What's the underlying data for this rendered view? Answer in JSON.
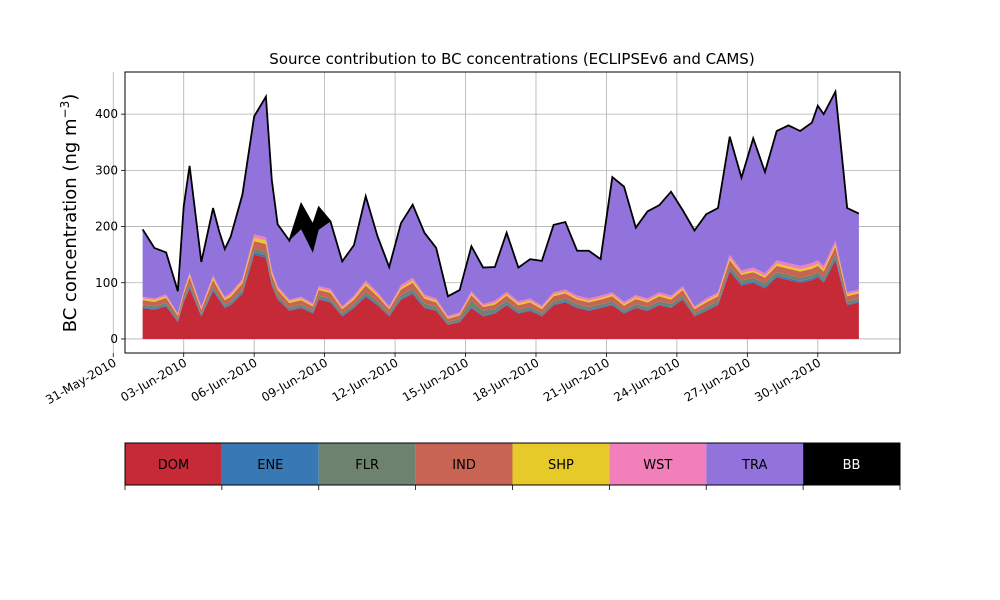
{
  "chart_data": {
    "type": "area",
    "title": "Source contribution to BC concentrations (ECLIPSEv6 and CAMS)",
    "ylabel": "BC concentration (ng m",
    "ylabel_sup": "−3",
    "ylabel_close": ")",
    "xlabel": "",
    "ylim": [
      -25,
      475
    ],
    "xlim": [
      "2010-05-31T12:00",
      "2010-07-03T12:00"
    ],
    "grid": true,
    "y_ticks": [
      0,
      100,
      200,
      300,
      400
    ],
    "x_ticks": [
      {
        "date": "2010-05-31",
        "label": "31-May-2010"
      },
      {
        "date": "2010-06-03",
        "label": "03-Jun-2010"
      },
      {
        "date": "2010-06-06",
        "label": "06-Jun-2010"
      },
      {
        "date": "2010-06-09",
        "label": "09-Jun-2010"
      },
      {
        "date": "2010-06-12",
        "label": "12-Jun-2010"
      },
      {
        "date": "2010-06-15",
        "label": "15-Jun-2010"
      },
      {
        "date": "2010-06-18",
        "label": "18-Jun-2010"
      },
      {
        "date": "2010-06-21",
        "label": "21-Jun-2010"
      },
      {
        "date": "2010-06-24",
        "label": "24-Jun-2010"
      },
      {
        "date": "2010-06-27",
        "label": "27-Jun-2010"
      },
      {
        "date": "2010-06-30",
        "label": "30-Jun-2010"
      }
    ],
    "total_line_color": "#000000",
    "x": [
      "2010-06-01T06:00",
      "2010-06-01T18:00",
      "2010-06-02T06:00",
      "2010-06-02T18:00",
      "2010-06-03T00:00",
      "2010-06-03T06:00",
      "2010-06-03T18:00",
      "2010-06-04T06:00",
      "2010-06-04T12:00",
      "2010-06-04T18:00",
      "2010-06-05T00:00",
      "2010-06-05T12:00",
      "2010-06-06T00:00",
      "2010-06-06T12:00",
      "2010-06-06T18:00",
      "2010-06-07T00:00",
      "2010-06-07T12:00",
      "2010-06-08T00:00",
      "2010-06-08T12:00",
      "2010-06-08T18:00",
      "2010-06-09T06:00",
      "2010-06-09T18:00",
      "2010-06-10T06:00",
      "2010-06-10T18:00",
      "2010-06-11T06:00",
      "2010-06-11T18:00",
      "2010-06-12T06:00",
      "2010-06-12T18:00",
      "2010-06-13T06:00",
      "2010-06-13T18:00",
      "2010-06-14T06:00",
      "2010-06-14T18:00",
      "2010-06-15T06:00",
      "2010-06-15T18:00",
      "2010-06-16T06:00",
      "2010-06-16T18:00",
      "2010-06-17T06:00",
      "2010-06-17T18:00",
      "2010-06-18T06:00",
      "2010-06-18T18:00",
      "2010-06-19T06:00",
      "2010-06-19T18:00",
      "2010-06-20T06:00",
      "2010-06-20T18:00",
      "2010-06-21T06:00",
      "2010-06-21T18:00",
      "2010-06-22T06:00",
      "2010-06-22T18:00",
      "2010-06-23T06:00",
      "2010-06-23T18:00",
      "2010-06-24T06:00",
      "2010-06-24T18:00",
      "2010-06-25T06:00",
      "2010-06-25T18:00",
      "2010-06-26T06:00",
      "2010-06-26T18:00",
      "2010-06-27T06:00",
      "2010-06-27T18:00",
      "2010-06-28T06:00",
      "2010-06-28T18:00",
      "2010-06-29T06:00",
      "2010-06-29T18:00",
      "2010-06-30T00:00",
      "2010-06-30T06:00",
      "2010-06-30T18:00",
      "2010-07-01T06:00",
      "2010-07-01T18:00"
    ],
    "series": [
      {
        "name": "DOM",
        "color": "#c62a37",
        "values": [
          55,
          52,
          58,
          30,
          65,
          90,
          40,
          85,
          70,
          55,
          60,
          80,
          150,
          145,
          95,
          70,
          50,
          55,
          45,
          70,
          65,
          40,
          55,
          75,
          60,
          40,
          70,
          80,
          55,
          50,
          25,
          30,
          55,
          40,
          45,
          60,
          45,
          50,
          40,
          60,
          65,
          55,
          50,
          55,
          60,
          45,
          55,
          50,
          60,
          55,
          70,
          40,
          50,
          60,
          120,
          95,
          100,
          90,
          110,
          105,
          100,
          105,
          110,
          100,
          140,
          60,
          65
        ]
      },
      {
        "name": "ENE",
        "color": "#3778b5",
        "values": [
          2,
          2,
          2,
          2,
          2,
          3,
          2,
          3,
          2,
          2,
          2,
          3,
          4,
          4,
          3,
          2,
          2,
          2,
          2,
          2,
          2,
          2,
          2,
          3,
          2,
          2,
          2,
          3,
          2,
          2,
          1,
          1,
          2,
          2,
          2,
          2,
          2,
          2,
          2,
          2,
          2,
          2,
          2,
          2,
          2,
          2,
          2,
          2,
          2,
          2,
          2,
          2,
          2,
          2,
          3,
          3,
          3,
          3,
          3,
          3,
          3,
          3,
          3,
          3,
          4,
          2,
          2
        ]
      },
      {
        "name": "FLR",
        "color": "#6e8270",
        "values": [
          4,
          4,
          4,
          3,
          4,
          5,
          3,
          5,
          4,
          4,
          4,
          5,
          6,
          6,
          5,
          5,
          4,
          4,
          4,
          5,
          5,
          4,
          4,
          6,
          5,
          4,
          6,
          6,
          6,
          5,
          4,
          5,
          12,
          8,
          6,
          6,
          5,
          5,
          4,
          5,
          5,
          5,
          5,
          5,
          5,
          4,
          5,
          5,
          5,
          5,
          5,
          4,
          5,
          5,
          6,
          6,
          6,
          6,
          6,
          6,
          6,
          6,
          6,
          6,
          7,
          5,
          5
        ]
      },
      {
        "name": "IND",
        "color": "#c86454",
        "values": [
          8,
          8,
          9,
          6,
          9,
          12,
          7,
          12,
          10,
          8,
          9,
          11,
          14,
          14,
          11,
          10,
          8,
          8,
          7,
          10,
          10,
          7,
          9,
          11,
          9,
          7,
          10,
          11,
          9,
          8,
          6,
          6,
          9,
          7,
          8,
          9,
          8,
          8,
          7,
          9,
          9,
          8,
          8,
          8,
          9,
          8,
          9,
          8,
          9,
          8,
          10,
          7,
          8,
          9,
          11,
          10,
          10,
          10,
          11,
          11,
          11,
          11,
          11,
          11,
          13,
          9,
          9
        ]
      },
      {
        "name": "SHP",
        "color": "#e6ca2a",
        "values": [
          3,
          3,
          3,
          2,
          3,
          4,
          2,
          4,
          3,
          3,
          3,
          4,
          6,
          6,
          4,
          3,
          3,
          3,
          2,
          3,
          3,
          2,
          3,
          4,
          3,
          2,
          3,
          4,
          3,
          3,
          2,
          2,
          3,
          2,
          3,
          3,
          3,
          3,
          3,
          3,
          3,
          3,
          3,
          3,
          3,
          3,
          3,
          3,
          3,
          3,
          3,
          2,
          3,
          3,
          4,
          3,
          3,
          3,
          4,
          4,
          4,
          4,
          4,
          4,
          4,
          3,
          3
        ]
      },
      {
        "name": "WST",
        "color": "#f07fba",
        "values": [
          3,
          3,
          3,
          2,
          3,
          4,
          3,
          4,
          4,
          3,
          4,
          4,
          6,
          6,
          5,
          4,
          3,
          3,
          3,
          4,
          4,
          3,
          4,
          5,
          4,
          3,
          5,
          5,
          4,
          4,
          3,
          3,
          4,
          3,
          4,
          4,
          4,
          4,
          3,
          4,
          4,
          4,
          4,
          4,
          4,
          4,
          4,
          4,
          4,
          4,
          4,
          3,
          4,
          4,
          6,
          5,
          5,
          5,
          6,
          6,
          6,
          6,
          6,
          6,
          7,
          4,
          4
        ]
      },
      {
        "name": "TRA",
        "color": "#9273dc",
        "values": [
          120,
          90,
          75,
          40,
          150,
          190,
          80,
          120,
          100,
          85,
          100,
          150,
          210,
          250,
          160,
          110,
          105,
          120,
          90,
          100,
          120,
          80,
          90,
          150,
          100,
          70,
          110,
          130,
          110,
          90,
          35,
          40,
          80,
          65,
          60,
          105,
          60,
          70,
          80,
          120,
          120,
          80,
          85,
          65,
          205,
          205,
          120,
          155,
          155,
          185,
          135,
          135,
          150,
          150,
          210,
          165,
          230,
          180,
          230,
          245,
          240,
          250,
          275,
          270,
          265,
          150,
          135
        ]
      },
      {
        "name": "BB",
        "color": "#000000",
        "values": [
          0,
          0,
          0,
          0,
          0,
          0,
          0,
          0,
          0,
          0,
          0,
          0,
          0,
          0,
          0,
          0,
          0,
          45,
          50,
          40,
          0,
          0,
          0,
          0,
          0,
          0,
          0,
          0,
          0,
          0,
          0,
          0,
          0,
          0,
          0,
          0,
          0,
          0,
          0,
          0,
          0,
          0,
          0,
          0,
          0,
          0,
          0,
          0,
          0,
          0,
          0,
          0,
          0,
          0,
          0,
          0,
          0,
          0,
          0,
          0,
          0,
          0,
          0,
          0,
          0,
          0,
          0
        ]
      }
    ],
    "legend": {
      "placement": "bottom",
      "entries": [
        {
          "label": "DOM",
          "color": "#c62a37",
          "text_color": "#000000"
        },
        {
          "label": "ENE",
          "color": "#3778b5",
          "text_color": "#000000"
        },
        {
          "label": "FLR",
          "color": "#6e8270",
          "text_color": "#000000"
        },
        {
          "label": "IND",
          "color": "#c86454",
          "text_color": "#000000"
        },
        {
          "label": "SHP",
          "color": "#e6ca2a",
          "text_color": "#000000"
        },
        {
          "label": "WST",
          "color": "#f07fba",
          "text_color": "#000000"
        },
        {
          "label": "TRA",
          "color": "#9273dc",
          "text_color": "#000000"
        },
        {
          "label": "BB",
          "color": "#000000",
          "text_color": "#ffffff"
        }
      ]
    }
  }
}
